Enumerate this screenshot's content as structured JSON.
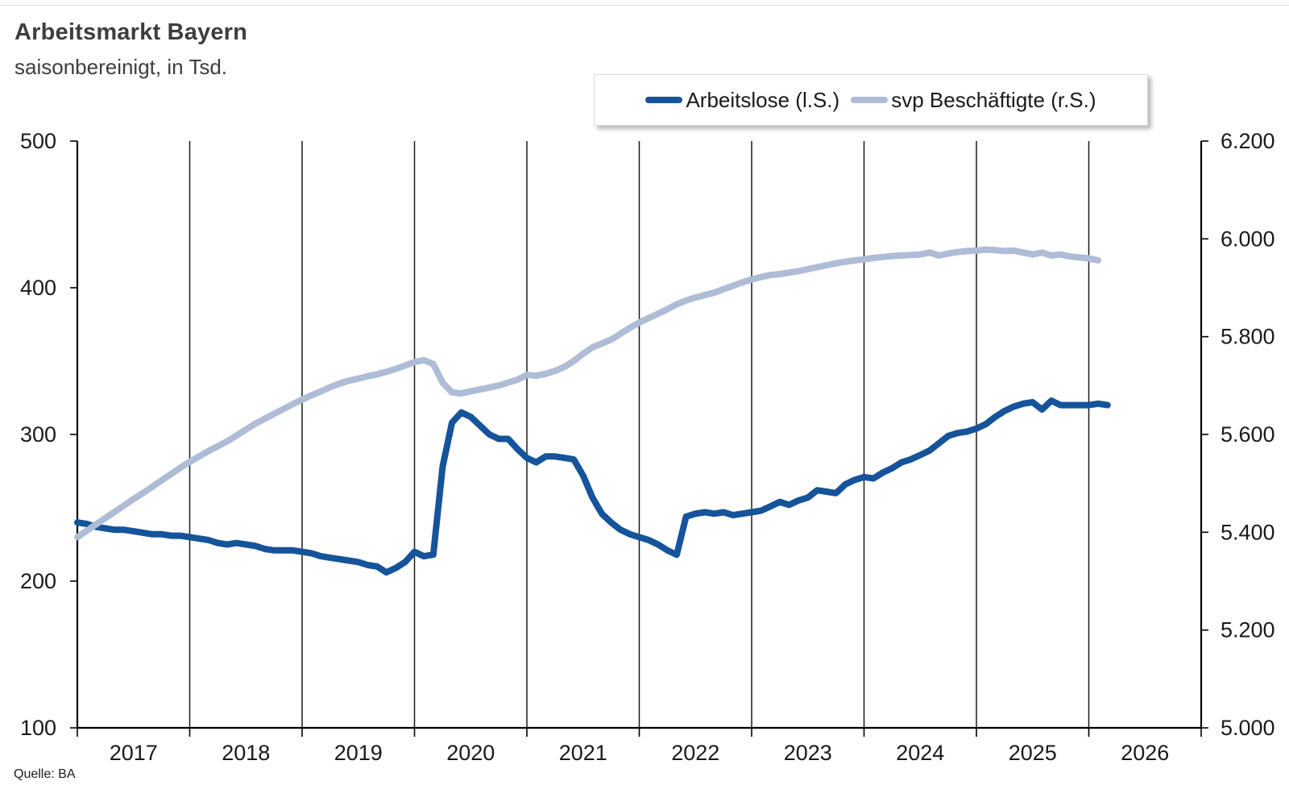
{
  "header": {
    "title": "Arbeitsmarkt Bayern",
    "subtitle": "saisonbereinigt, in Tsd."
  },
  "source_label": "Quelle: BA",
  "legend": {
    "items": [
      {
        "label": "Arbeitslose (l.S.)",
        "color": "#15549a"
      },
      {
        "label": "svp Beschäftigte (r.S.)",
        "color": "#aebcd6"
      }
    ]
  },
  "chart_data": {
    "type": "line",
    "title": "Arbeitsmarkt Bayern",
    "subtitle": "saisonbereinigt, in Tsd.",
    "frequency": "monthly",
    "x_start": "2017-01",
    "x_tick_labels": [
      "2017",
      "2018",
      "2019",
      "2020",
      "2021",
      "2022",
      "2023",
      "2024",
      "2025",
      "2026"
    ],
    "grid": "vertical-year-lines",
    "legend_position": "top-right",
    "left_axis": {
      "side": "left",
      "series": "Arbeitslose (l.S.)",
      "ticks": [
        500,
        400,
        300,
        200,
        100
      ],
      "range": [
        100,
        500
      ]
    },
    "right_axis": {
      "side": "right",
      "series": "svp Beschäftigte (r.S.)",
      "tick_labels": [
        "6.200",
        "6.000",
        "5.800",
        "5.600",
        "5.400",
        "5.200",
        "5.000"
      ],
      "tick_values": [
        6200,
        6000,
        5800,
        5600,
        5400,
        5200,
        5000
      ],
      "range": [
        5000,
        6200
      ]
    },
    "series": [
      {
        "name": "Arbeitslose (l.S.)",
        "axis": "left",
        "color": "#15549a",
        "values": [
          240,
          239,
          237,
          236,
          235,
          235,
          234,
          233,
          232,
          232,
          231,
          231,
          230,
          229,
          228,
          226,
          225,
          226,
          225,
          224,
          222,
          221,
          221,
          221,
          220,
          219,
          217,
          216,
          215,
          214,
          213,
          211,
          210,
          206,
          209,
          213,
          220,
          217,
          218,
          278,
          308,
          315,
          312,
          306,
          300,
          297,
          297,
          290,
          284,
          281,
          285,
          285,
          284,
          283,
          272,
          257,
          246,
          240,
          235,
          232,
          230,
          228,
          225,
          221,
          218,
          244,
          246,
          247,
          246,
          247,
          245,
          246,
          247,
          248,
          251,
          254,
          252,
          255,
          257,
          262,
          261,
          260,
          266,
          269,
          271,
          270,
          274,
          277,
          281,
          283,
          286,
          289,
          294,
          299,
          301,
          302,
          304,
          307,
          312,
          316,
          319,
          321,
          322,
          317,
          323,
          320,
          320,
          320,
          320,
          321,
          320
        ]
      },
      {
        "name": "svp Beschäftigte (r.S.)",
        "axis": "right",
        "color": "#aebcd6",
        "values": [
          5390,
          5403,
          5416,
          5429,
          5442,
          5455,
          5468,
          5480,
          5493,
          5506,
          5519,
          5532,
          5544,
          5555,
          5566,
          5576,
          5586,
          5598,
          5610,
          5622,
          5632,
          5642,
          5652,
          5662,
          5671,
          5680,
          5688,
          5697,
          5704,
          5710,
          5714,
          5719,
          5723,
          5728,
          5734,
          5741,
          5748,
          5752,
          5744,
          5706,
          5686,
          5684,
          5688,
          5692,
          5696,
          5700,
          5706,
          5712,
          5722,
          5720,
          5724,
          5730,
          5738,
          5750,
          5765,
          5778,
          5786,
          5794,
          5806,
          5818,
          5829,
          5838,
          5847,
          5856,
          5866,
          5874,
          5880,
          5885,
          5890,
          5897,
          5904,
          5911,
          5917,
          5922,
          5926,
          5928,
          5931,
          5934,
          5938,
          5942,
          5946,
          5950,
          5953,
          5956,
          5958,
          5961,
          5963,
          5965,
          5966,
          5967,
          5968,
          5972,
          5966,
          5970,
          5973,
          5975,
          5976,
          5978,
          5977,
          5975,
          5976,
          5972,
          5968,
          5972,
          5966,
          5968,
          5964,
          5962,
          5960,
          5956
        ]
      }
    ]
  }
}
